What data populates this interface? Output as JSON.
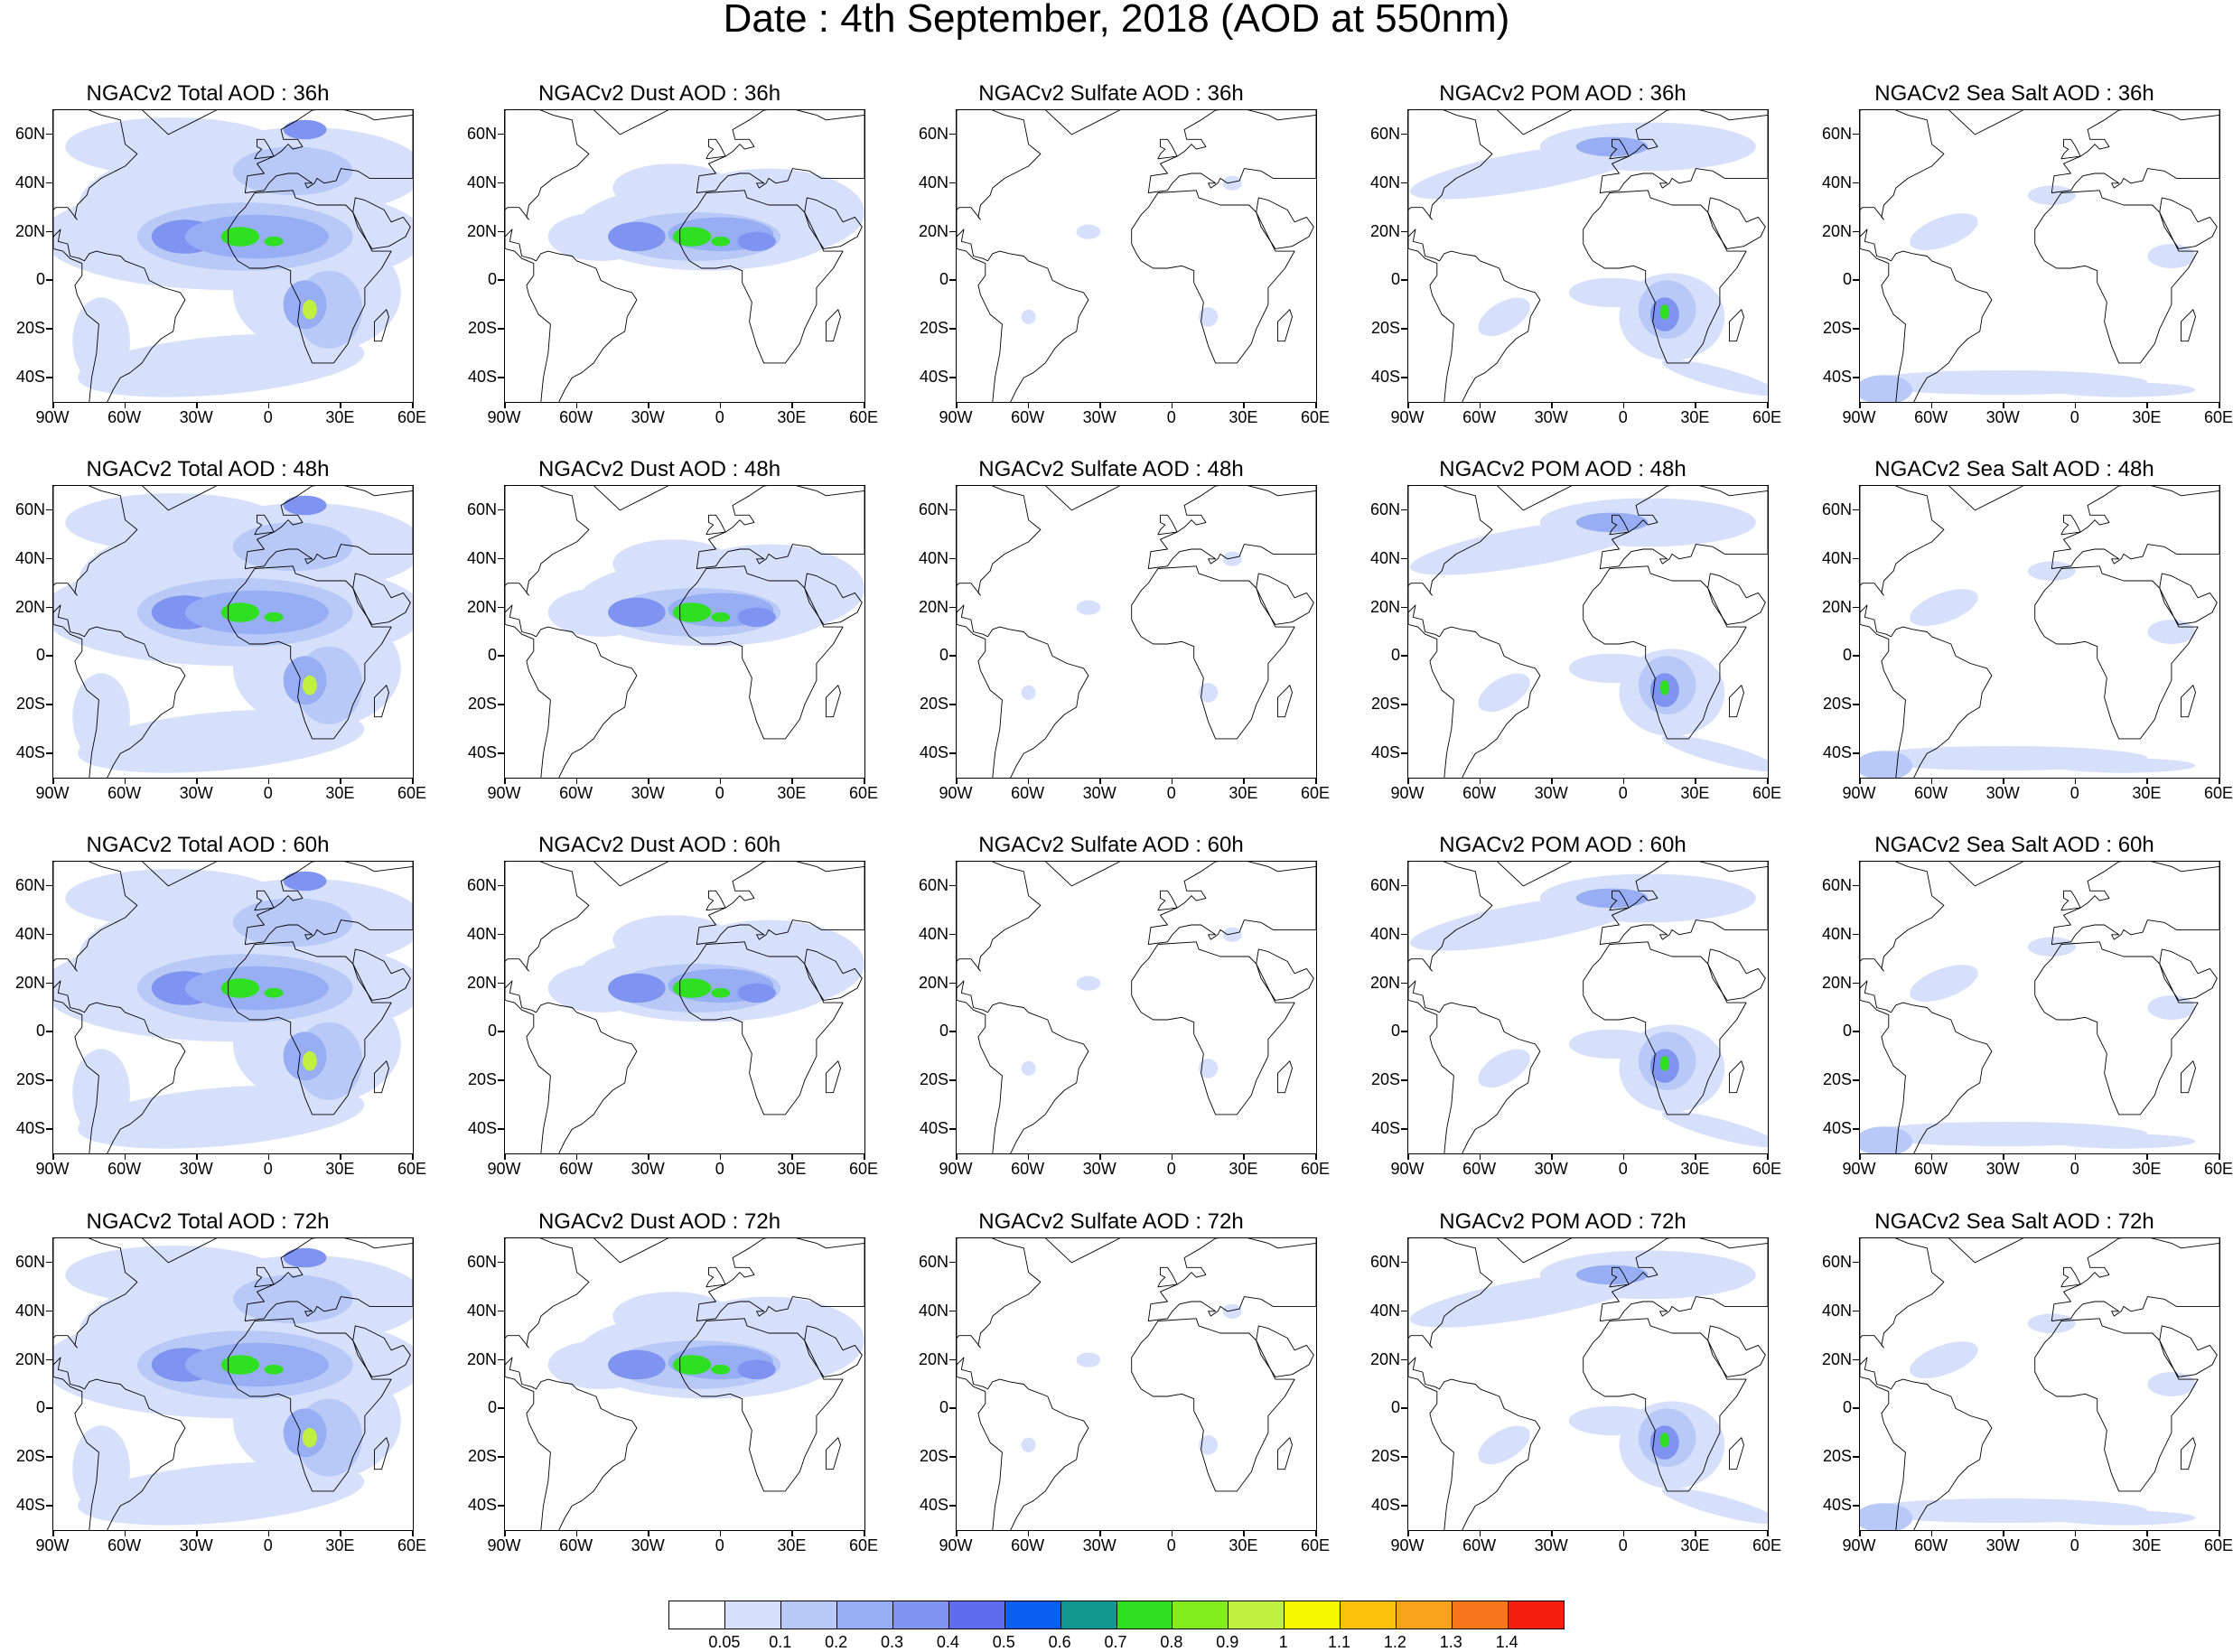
{
  "title": "Date : 4th September, 2018 (AOD at 550nm)",
  "lat_labels": [
    "60N",
    "40N",
    "20N",
    "0",
    "20S",
    "40S"
  ],
  "lon_labels": [
    "90W",
    "60W",
    "30W",
    "0",
    "30E",
    "60E"
  ],
  "panels": [
    {
      "title": "NGACv2 Total AOD : 36h",
      "species": "total"
    },
    {
      "title": "NGACv2 Dust AOD : 36h",
      "species": "dust"
    },
    {
      "title": "NGACv2 Sulfate AOD : 36h",
      "species": "sulfate"
    },
    {
      "title": "NGACv2 POM AOD : 36h",
      "species": "pom"
    },
    {
      "title": "NGACv2 Sea Salt AOD : 36h",
      "species": "seasalt"
    },
    {
      "title": "NGACv2 Total AOD : 48h",
      "species": "total"
    },
    {
      "title": "NGACv2 Dust AOD : 48h",
      "species": "dust"
    },
    {
      "title": "NGACv2 Sulfate AOD : 48h",
      "species": "sulfate"
    },
    {
      "title": "NGACv2 POM AOD : 48h",
      "species": "pom"
    },
    {
      "title": "NGACv2 Sea Salt AOD : 48h",
      "species": "seasalt"
    },
    {
      "title": "NGACv2 Total AOD : 60h",
      "species": "total"
    },
    {
      "title": "NGACv2 Dust AOD : 60h",
      "species": "dust"
    },
    {
      "title": "NGACv2 Sulfate AOD : 60h",
      "species": "sulfate"
    },
    {
      "title": "NGACv2 POM AOD : 60h",
      "species": "pom"
    },
    {
      "title": "NGACv2 Sea Salt AOD : 60h",
      "species": "seasalt"
    },
    {
      "title": "NGACv2 Total AOD : 72h",
      "species": "total"
    },
    {
      "title": "NGACv2 Dust AOD : 72h",
      "species": "dust"
    },
    {
      "title": "NGACv2 Sulfate AOD : 72h",
      "species": "sulfate"
    },
    {
      "title": "NGACv2 POM AOD : 72h",
      "species": "pom"
    },
    {
      "title": "NGACv2 Sea Salt  AOD : 72h",
      "species": "seasalt"
    }
  ],
  "colorbar": {
    "labels": [
      "0.05",
      "0.1",
      "0.2",
      "0.3",
      "0.4",
      "0.5",
      "0.6",
      "0.7",
      "0.8",
      "0.9",
      "1",
      "1.1",
      "1.2",
      "1.3",
      "1.4"
    ],
    "colors": [
      "#ffffff",
      "#d6e0fb",
      "#b8c8f7",
      "#98aef4",
      "#7f93f0",
      "#5f6ced",
      "#0a5ef0",
      "#10978e",
      "#2ee021",
      "#82ec1f",
      "#c1f041",
      "#f7f700",
      "#f9c10a",
      "#f8a31a",
      "#f7761c",
      "#f61e10"
    ]
  },
  "map_extent": {
    "lon": [
      -90,
      60
    ],
    "lat": [
      -50,
      70
    ]
  }
}
